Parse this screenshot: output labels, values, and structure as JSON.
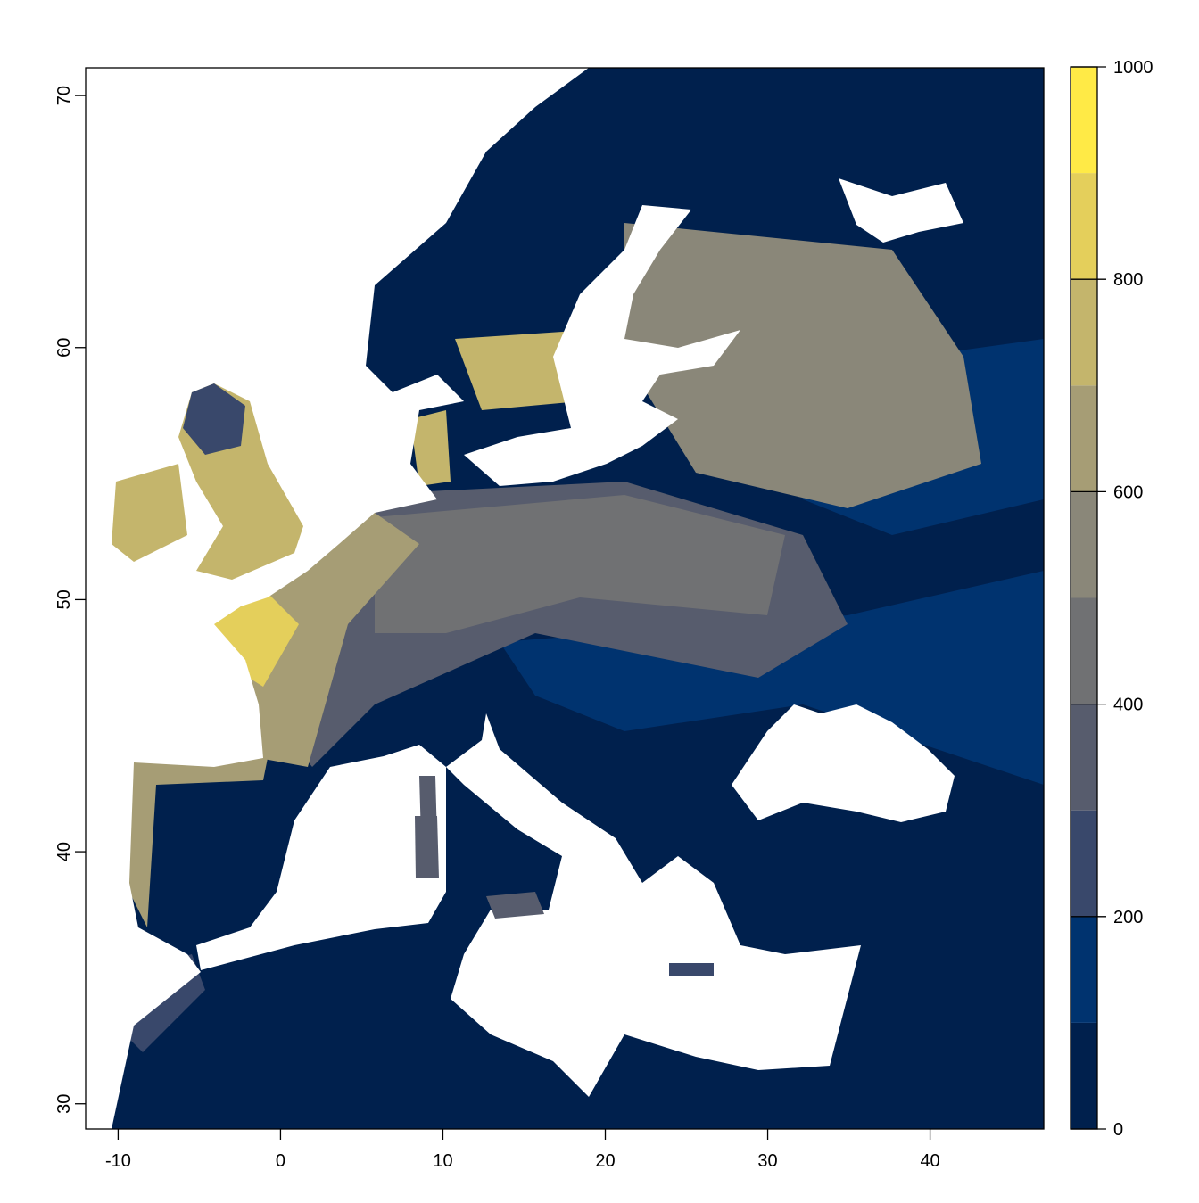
{
  "chart_data": {
    "type": "raster-map",
    "xlim": [
      -12,
      47
    ],
    "ylim": [
      29,
      71.1
    ],
    "xticks": [
      -10,
      0,
      10,
      20,
      30,
      40
    ],
    "yticks": [
      30,
      40,
      50,
      60,
      70
    ],
    "colorbar": {
      "breaks": [
        0,
        100,
        200,
        300,
        400,
        500,
        600,
        700,
        800,
        900,
        1000
      ],
      "colors": [
        "#00204d",
        "#00336f",
        "#39486b",
        "#575c6d",
        "#707173",
        "#8a8779",
        "#a69d75",
        "#c4b56c",
        "#e4cf5b",
        "#ffea46"
      ],
      "ticks": [
        0,
        200,
        400,
        600,
        800,
        1000
      ]
    }
  }
}
